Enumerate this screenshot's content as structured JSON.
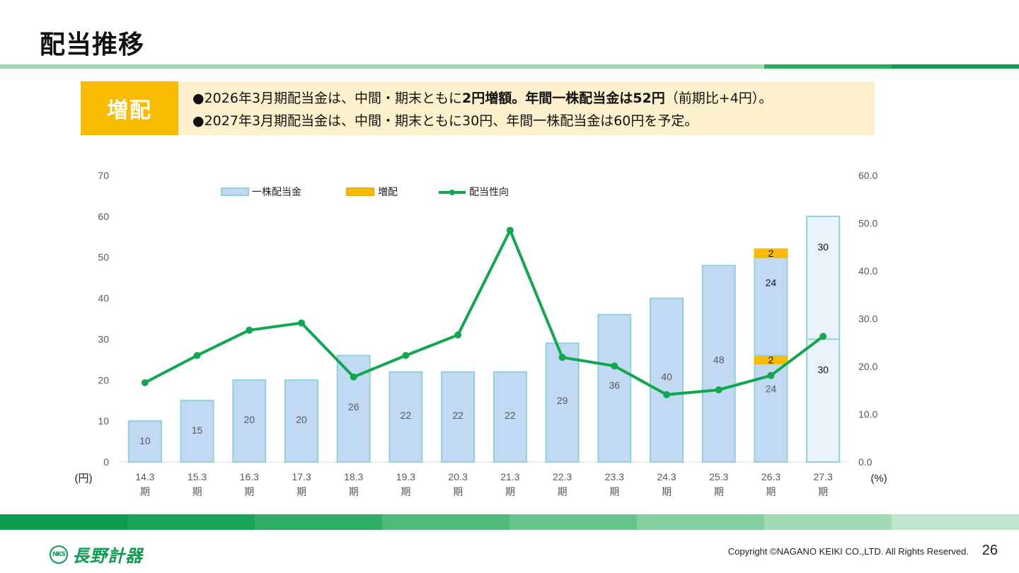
{
  "title": "配当推移",
  "callout": {
    "tag": "増配",
    "line1": {
      "bullet": "●",
      "p1": "2026年3月期配当金は、中間・期末ともに",
      "b1": "2円増額。年間一株配当金は52円",
      "p2": "（前期比+4円）。"
    },
    "line2": {
      "bullet": "●",
      "text": "2027年3月期配当金は、中間・期末ともに30円、年間一株配当金は60円を予定。"
    }
  },
  "colors": {
    "bar_fill": "#c2d9f3",
    "bar_stroke": "#8fd3d9",
    "forecast_fill": "#eaf3fc",
    "increase_fill": "#f8bb00",
    "line": "#10a84e",
    "callout_bg": "#fdf0cc",
    "tag_bg": "#f8bb00",
    "brand_green": "#0a9c50",
    "top_band": [
      "#9fdab6",
      "#9fdab6",
      "#9fdab6",
      "#9fdab6",
      "#9fdab6",
      "#9fdab6",
      "#28ad60",
      "#0a9c50"
    ],
    "bottom_band": [
      "#0a9c50",
      "#1aa35a",
      "#32ad6a",
      "#4db97a",
      "#68c48d",
      "#84cf9f",
      "#a0dab4",
      "#bfe6cc"
    ]
  },
  "chart_data": {
    "type": "bar",
    "categories": [
      "14.3\n期",
      "15.3\n期",
      "16.3\n期",
      "17.3\n期",
      "18.3\n期",
      "19.3\n期",
      "20.3\n期",
      "21.3\n期",
      "22.3\n期",
      "23.3\n期",
      "24.3\n期",
      "25.3\n期",
      "26.3\n期",
      "27.3\n期"
    ],
    "series": [
      {
        "name": "一株配当金",
        "type": "bar",
        "axis": "left",
        "values": [
          10,
          15,
          20,
          20,
          26,
          22,
          22,
          22,
          29,
          36,
          40,
          48,
          null,
          null
        ]
      },
      {
        "name": "",
        "type": "stacked",
        "axis": "left",
        "category": "26.3\n期",
        "segments": [
          {
            "value": 24,
            "label": "24",
            "kind": "base"
          },
          {
            "value": 2,
            "label": "2",
            "kind": "increase"
          },
          {
            "value": 24,
            "label": "24",
            "kind": "base"
          },
          {
            "value": 2,
            "label": "2",
            "kind": "increase"
          }
        ]
      },
      {
        "name": "",
        "type": "stacked",
        "axis": "left",
        "category": "27.3\n期",
        "forecast": true,
        "segments": [
          {
            "value": 30,
            "label": "30",
            "kind": "forecast"
          },
          {
            "value": 30,
            "label": "30",
            "kind": "forecast"
          }
        ]
      },
      {
        "name": "配当性向",
        "type": "line",
        "axis": "right",
        "values": [
          16.6,
          22.3,
          27.6,
          29.1,
          17.8,
          22.3,
          26.6,
          48.5,
          21.9,
          20.1,
          14.1,
          15.1,
          18.1,
          26.3
        ]
      }
    ],
    "legend": [
      {
        "label": "一株配当金",
        "kind": "bar"
      },
      {
        "label": "増配",
        "kind": "increase"
      },
      {
        "label": "配当性向",
        "kind": "line"
      }
    ],
    "legend_position": "top",
    "y_left": {
      "min": 0,
      "max": 70,
      "step": 10,
      "unit": "(円)",
      "ticks": [
        "0",
        "10",
        "20",
        "30",
        "40",
        "50",
        "60",
        "70"
      ]
    },
    "y_right": {
      "min": 0,
      "max": 60,
      "step": 10,
      "unit": "(%)",
      "ticks": [
        "0.0",
        "10.0",
        "20.0",
        "30.0",
        "40.0",
        "50.0",
        "60.0"
      ]
    },
    "grid": false
  },
  "footer": {
    "logo_mark": "NKS",
    "logo_text": "長野計器",
    "copyright": "Copyright ©NAGANO KEIKI CO.,LTD. All Rights Reserved.",
    "page_number": "26"
  }
}
